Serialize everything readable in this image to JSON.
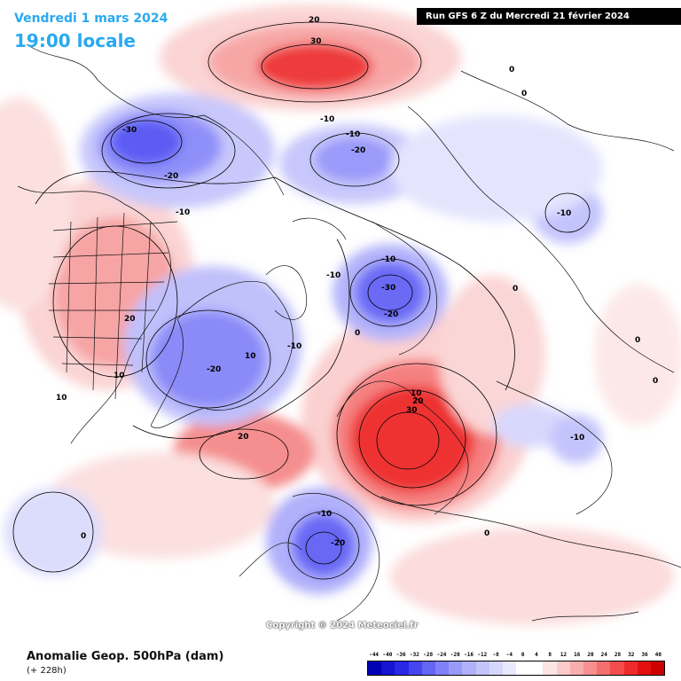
{
  "header": {
    "date": "Vendredi 1 mars 2024",
    "time": "19:00 locale",
    "run": "Run GFS 6 Z du Mercredi 21 février 2024"
  },
  "footer": {
    "variable": "Anomalie Geop. 500hPa (dam)",
    "lead": "(+ 228h)",
    "copyright": "Copyright © 2024 Meteociel.fr"
  },
  "legend": {
    "ticks": [
      "-44",
      "-40",
      "-36",
      "-32",
      "-28",
      "-24",
      "-20",
      "-16",
      "-12",
      "-8",
      "-4",
      "0",
      "4",
      "8",
      "12",
      "16",
      "20",
      "24",
      "28",
      "32",
      "36",
      "40"
    ],
    "colors": [
      "#0000b4",
      "#1414d2",
      "#2828e6",
      "#4646f0",
      "#6464f5",
      "#8080f8",
      "#9999fa",
      "#b0b0fb",
      "#c4c4fc",
      "#d6d6fd",
      "#e8e8fe",
      "#ffffff",
      "#ffffff",
      "#fde4e4",
      "#fbcaca",
      "#f9aeae",
      "#f78f8f",
      "#f46e6e",
      "#f24c4c",
      "#ee2b2b",
      "#e41010",
      "#cc0000"
    ]
  },
  "map": {
    "contour_labels": [
      {
        "text": "20"
      },
      {
        "text": "30"
      },
      {
        "text": "-10"
      },
      {
        "text": "-30"
      },
      {
        "text": "-20"
      },
      {
        "text": "-10"
      },
      {
        "text": "-20"
      },
      {
        "text": "-10"
      },
      {
        "text": "0"
      },
      {
        "text": "0"
      },
      {
        "text": "-10"
      },
      {
        "text": "-30"
      },
      {
        "text": "-20"
      },
      {
        "text": "-10"
      },
      {
        "text": "-10"
      },
      {
        "text": "0"
      },
      {
        "text": "20"
      },
      {
        "text": "10"
      },
      {
        "text": "10"
      },
      {
        "text": "-20"
      },
      {
        "text": "10"
      },
      {
        "text": "-10"
      },
      {
        "text": "20"
      },
      {
        "text": "0"
      },
      {
        "text": "10"
      },
      {
        "text": "20"
      },
      {
        "text": "30"
      },
      {
        "text": "-10"
      },
      {
        "text": "-20"
      },
      {
        "text": "0"
      },
      {
        "text": "-10"
      },
      {
        "text": "0"
      },
      {
        "text": "0"
      },
      {
        "text": "0"
      }
    ]
  }
}
